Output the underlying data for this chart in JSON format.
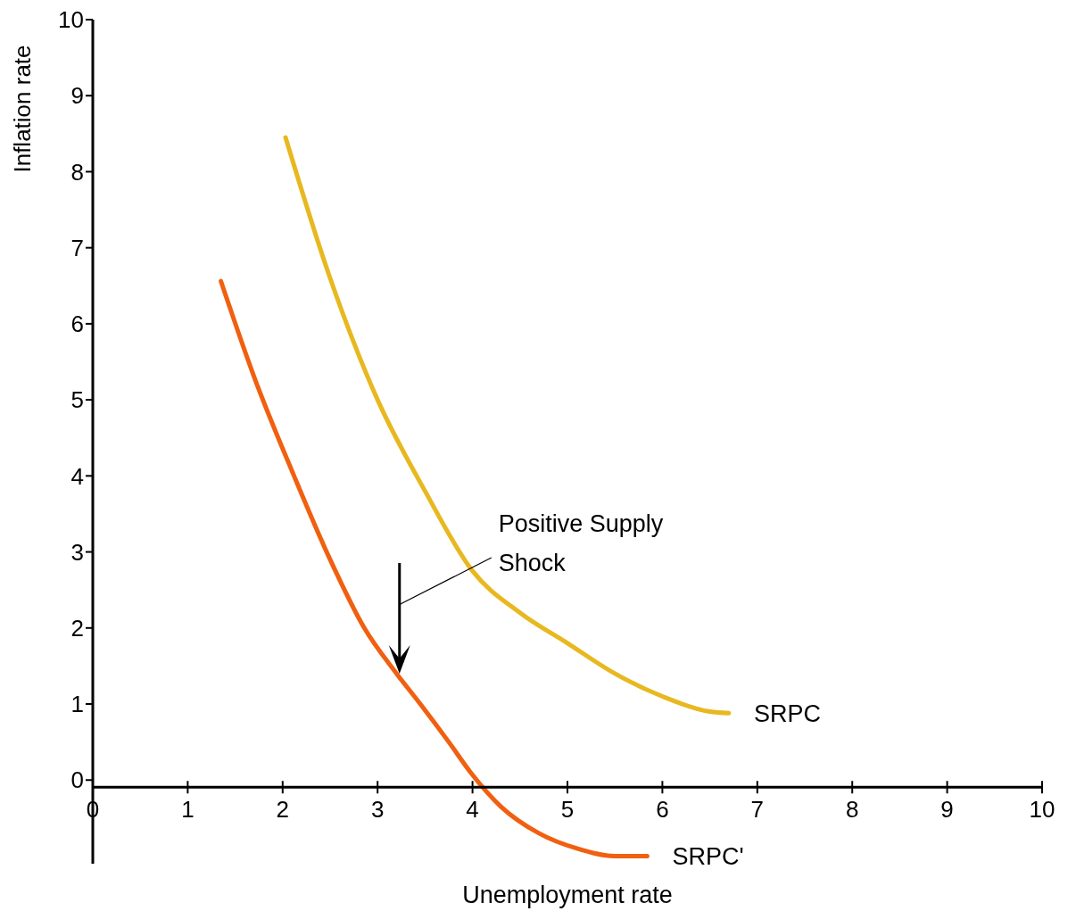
{
  "chart_data": {
    "type": "line",
    "xlabel": "Unemployment rate",
    "ylabel": "Inflation rate",
    "xlim": [
      0,
      10
    ],
    "xticks": [
      0,
      1,
      2,
      3,
      4,
      5,
      6,
      7,
      8,
      9,
      10
    ],
    "ylim": [
      -1.1,
      10
    ],
    "yticks": [
      0,
      1,
      2,
      3,
      4,
      5,
      6,
      7,
      8,
      9,
      10
    ],
    "grid": false,
    "legend": false,
    "marker": "none",
    "line_style": "solid",
    "annotations": [
      "Positive Supply Shock"
    ],
    "series": [
      {
        "name": "SRPC",
        "color": "#e8b820",
        "x": [
          2.03,
          2.5,
          3,
          3.5,
          4,
          4.5,
          5,
          5.5,
          6,
          6.5,
          6.7
        ],
        "values": [
          8.45,
          6.6,
          5.0,
          3.8,
          2.75,
          2.2,
          1.8,
          1.4,
          1.1,
          0.9,
          0.88
        ]
      },
      {
        "name": "SRPC'",
        "color": "#f06010",
        "x": [
          1.35,
          1.7,
          2.12,
          2.5,
          2.86,
          3.2,
          3.45,
          3.75,
          3.98,
          4.3,
          4.7,
          5.1,
          5.5,
          5.84
        ],
        "values": [
          6.56,
          5.3,
          4.0,
          2.9,
          2.0,
          1.4,
          1.0,
          0.5,
          0.1,
          -0.35,
          -0.7,
          -0.9,
          -1.0,
          -1.0
        ]
      }
    ]
  }
}
